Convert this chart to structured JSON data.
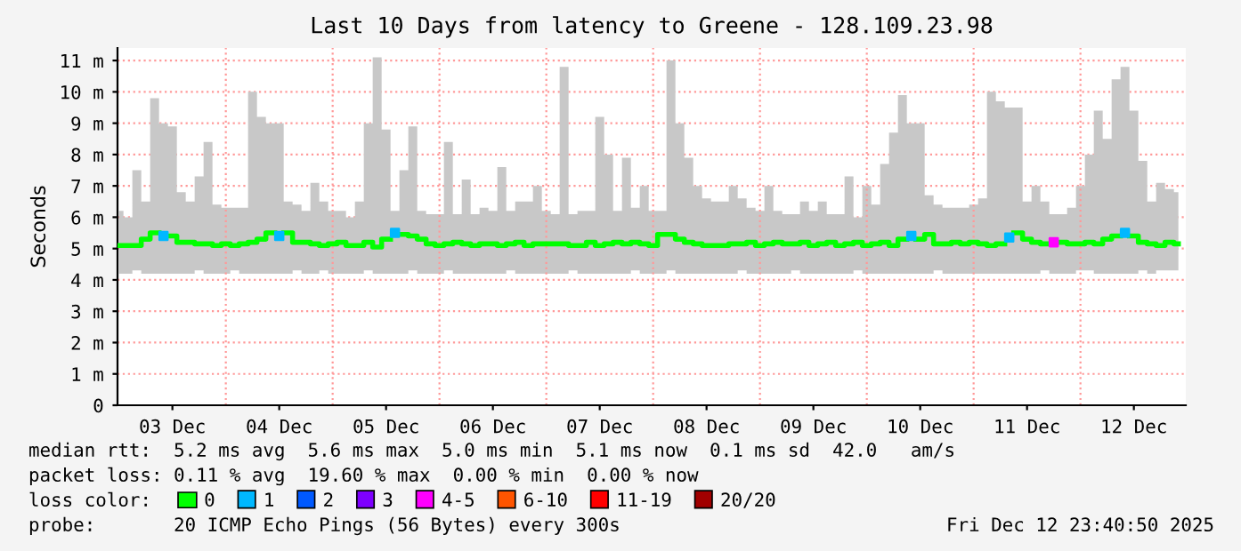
{
  "chart_data": {
    "type": "line",
    "title": "Last 10 Days from latency to Greene - 128.109.23.98",
    "ylabel": "Seconds",
    "legend_title": "loss color:",
    "legend": "bottom",
    "grid": "y",
    "xlim": [
      "2025-12-02T23:40",
      "2025-12-12T23:40"
    ],
    "xticks": [
      {
        "value": "2025-12-03T12:00",
        "label": "03 Dec"
      },
      {
        "value": "2025-12-04T12:00",
        "label": "04 Dec"
      },
      {
        "value": "2025-12-05T12:00",
        "label": "05 Dec"
      },
      {
        "value": "2025-12-06T12:00",
        "label": "06 Dec"
      },
      {
        "value": "2025-12-07T12:00",
        "label": "07 Dec"
      },
      {
        "value": "2025-12-08T12:00",
        "label": "08 Dec"
      },
      {
        "value": "2025-12-09T12:00",
        "label": "09 Dec"
      },
      {
        "value": "2025-12-10T12:00",
        "label": "10 Dec"
      },
      {
        "value": "2025-12-11T12:00",
        "label": "11 Dec"
      },
      {
        "value": "2025-12-12T12:00",
        "label": "12 Dec"
      }
    ],
    "ylim": [
      0,
      11.4
    ],
    "yticks": [
      0,
      {
        "value": 1,
        "label": "1 m"
      },
      {
        "value": 2,
        "label": "2 m"
      },
      {
        "value": 3,
        "label": "3 m"
      },
      {
        "value": 4,
        "label": "4 m"
      },
      {
        "value": 5,
        "label": "5 m"
      },
      {
        "value": 6,
        "label": "6 m"
      },
      {
        "value": 7,
        "label": "7 m"
      },
      {
        "value": 8,
        "label": "8 m"
      },
      {
        "value": 9,
        "label": "9 m"
      },
      {
        "value": 10,
        "label": "10 m"
      },
      {
        "value": 11,
        "label": "11 m"
      }
    ],
    "ref_lines": [
      {
        "axis": "x",
        "value": "2025-12-04T00:00",
        "color": "#ff9999",
        "line_style": "dotted"
      },
      {
        "axis": "x",
        "value": "2025-12-05T00:00",
        "color": "#ff9999",
        "line_style": "dotted"
      },
      {
        "axis": "x",
        "value": "2025-12-06T00:00",
        "color": "#ff9999",
        "line_style": "dotted"
      },
      {
        "axis": "x",
        "value": "2025-12-07T00:00",
        "color": "#ff9999",
        "line_style": "dotted"
      },
      {
        "axis": "x",
        "value": "2025-12-08T00:00",
        "color": "#ff9999",
        "line_style": "dotted"
      },
      {
        "axis": "x",
        "value": "2025-12-09T00:00",
        "color": "#ff9999",
        "line_style": "dotted"
      },
      {
        "axis": "x",
        "value": "2025-12-10T00:00",
        "color": "#ff9999",
        "line_style": "dotted"
      },
      {
        "axis": "x",
        "value": "2025-12-11T00:00",
        "color": "#ff9999",
        "line_style": "dotted"
      },
      {
        "axis": "x",
        "value": "2025-12-12T00:00",
        "color": "#ff9999",
        "line_style": "dotted"
      }
    ],
    "x": [
      "2025-12-03T00:00",
      "2025-12-03T02:00",
      "2025-12-03T04:00",
      "2025-12-03T06:00",
      "2025-12-03T08:00",
      "2025-12-03T10:00",
      "2025-12-03T12:00",
      "2025-12-03T14:00",
      "2025-12-03T16:00",
      "2025-12-03T18:00",
      "2025-12-03T20:00",
      "2025-12-03T22:00",
      "2025-12-04T00:00",
      "2025-12-04T02:00",
      "2025-12-04T04:00",
      "2025-12-04T06:00",
      "2025-12-04T08:00",
      "2025-12-04T10:00",
      "2025-12-04T12:00",
      "2025-12-04T14:00",
      "2025-12-04T16:00",
      "2025-12-04T18:00",
      "2025-12-04T20:00",
      "2025-12-04T22:00",
      "2025-12-05T00:00",
      "2025-12-05T02:00",
      "2025-12-05T04:00",
      "2025-12-05T06:00",
      "2025-12-05T08:00",
      "2025-12-05T10:00",
      "2025-12-05T12:00",
      "2025-12-05T14:00",
      "2025-12-05T16:00",
      "2025-12-05T18:00",
      "2025-12-05T20:00",
      "2025-12-05T22:00",
      "2025-12-06T00:00",
      "2025-12-06T02:00",
      "2025-12-06T04:00",
      "2025-12-06T06:00",
      "2025-12-06T08:00",
      "2025-12-06T10:00",
      "2025-12-06T12:00",
      "2025-12-06T14:00",
      "2025-12-06T16:00",
      "2025-12-06T18:00",
      "2025-12-06T20:00",
      "2025-12-06T22:00",
      "2025-12-07T00:00",
      "2025-12-07T02:00",
      "2025-12-07T04:00",
      "2025-12-07T06:00",
      "2025-12-07T08:00",
      "2025-12-07T10:00",
      "2025-12-07T12:00",
      "2025-12-07T14:00",
      "2025-12-07T16:00",
      "2025-12-07T18:00",
      "2025-12-07T20:00",
      "2025-12-07T22:00",
      "2025-12-08T00:00",
      "2025-12-08T02:00",
      "2025-12-08T04:00",
      "2025-12-08T06:00",
      "2025-12-08T08:00",
      "2025-12-08T10:00",
      "2025-12-08T12:00",
      "2025-12-08T14:00",
      "2025-12-08T16:00",
      "2025-12-08T18:00",
      "2025-12-08T20:00",
      "2025-12-08T22:00",
      "2025-12-09T00:00",
      "2025-12-09T02:00",
      "2025-12-09T04:00",
      "2025-12-09T06:00",
      "2025-12-09T08:00",
      "2025-12-09T10:00",
      "2025-12-09T12:00",
      "2025-12-09T14:00",
      "2025-12-09T16:00",
      "2025-12-09T18:00",
      "2025-12-09T20:00",
      "2025-12-09T22:00",
      "2025-12-10T00:00",
      "2025-12-10T02:00",
      "2025-12-10T04:00",
      "2025-12-10T06:00",
      "2025-12-10T08:00",
      "2025-12-10T10:00",
      "2025-12-10T12:00",
      "2025-12-10T14:00",
      "2025-12-10T16:00",
      "2025-12-10T18:00",
      "2025-12-10T20:00",
      "2025-12-10T22:00",
      "2025-12-11T00:00",
      "2025-12-11T02:00",
      "2025-12-11T04:00",
      "2025-12-11T06:00",
      "2025-12-11T08:00",
      "2025-12-11T10:00",
      "2025-12-11T12:00",
      "2025-12-11T14:00",
      "2025-12-11T16:00",
      "2025-12-11T18:00",
      "2025-12-11T20:00",
      "2025-12-11T22:00",
      "2025-12-12T00:00",
      "2025-12-12T02:00",
      "2025-12-12T04:00",
      "2025-12-12T06:00",
      "2025-12-12T08:00",
      "2025-12-12T10:00",
      "2025-12-12T12:00",
      "2025-12-12T14:00",
      "2025-12-12T16:00",
      "2025-12-12T18:00",
      "2025-12-12T20:00",
      "2025-12-12T22:00"
    ],
    "series": [
      {
        "name": "0",
        "color": "#00ff00",
        "values": [
          5.1,
          5.1,
          5.1,
          5.3,
          5.5,
          null,
          5.4,
          5.2,
          5.2,
          5.15,
          5.15,
          5.1,
          5.15,
          5.1,
          5.15,
          5.2,
          5.3,
          5.5,
          null,
          5.5,
          5.2,
          5.2,
          5.15,
          5.1,
          5.15,
          5.2,
          5.1,
          5.1,
          5.2,
          5.05,
          5.3,
          null,
          5.45,
          5.4,
          5.3,
          5.15,
          5.1,
          5.15,
          5.2,
          5.15,
          5.1,
          5.15,
          5.15,
          5.1,
          5.15,
          5.2,
          5.1,
          5.15,
          5.15,
          5.15,
          5.15,
          5.1,
          5.1,
          5.2,
          5.1,
          5.15,
          5.2,
          5.15,
          5.2,
          5.15,
          5.1,
          5.45,
          5.45,
          5.3,
          5.2,
          5.15,
          5.1,
          5.1,
          5.1,
          5.15,
          5.15,
          5.2,
          5.1,
          5.15,
          5.2,
          5.15,
          5.15,
          5.2,
          5.1,
          5.15,
          5.2,
          5.1,
          5.15,
          5.2,
          5.1,
          5.15,
          5.2,
          5.1,
          5.3,
          null,
          5.3,
          5.45,
          5.15,
          5.15,
          5.2,
          5.15,
          5.2,
          5.15,
          5.1,
          5.15,
          null,
          5.5,
          5.3,
          5.2,
          5.15,
          null,
          5.2,
          5.15,
          5.15,
          5.2,
          5.15,
          5.3,
          5.4,
          null,
          5.4,
          5.2,
          5.15,
          5.1,
          5.2,
          5.15
        ],
        "lower": [
          4.2,
          4.2,
          4.3,
          4.2,
          4.2,
          4.2,
          4.2,
          4.2,
          4.2,
          4.3,
          4.2,
          4.2,
          4.2,
          4.3,
          4.2,
          4.2,
          4.2,
          4.2,
          4.2,
          4.2,
          4.3,
          4.2,
          4.2,
          4.3,
          4.2,
          4.2,
          4.2,
          4.2,
          4.3,
          4.2,
          4.2,
          4.2,
          4.2,
          4.3,
          4.2,
          4.2,
          4.2,
          4.3,
          4.2,
          4.2,
          4.2,
          4.2,
          4.2,
          4.2,
          4.3,
          4.2,
          4.2,
          4.2,
          4.2,
          4.2,
          4.2,
          4.3,
          4.2,
          4.2,
          4.2,
          4.2,
          4.2,
          4.2,
          4.3,
          4.2,
          4.2,
          4.2,
          4.3,
          4.2,
          4.2,
          4.2,
          4.2,
          4.2,
          4.2,
          4.2,
          4.3,
          4.2,
          4.2,
          4.2,
          4.2,
          4.2,
          4.3,
          4.2,
          4.2,
          4.2,
          4.2,
          4.2,
          4.2,
          4.3,
          4.2,
          4.2,
          4.2,
          4.2,
          4.2,
          4.2,
          4.2,
          4.2,
          4.3,
          4.2,
          4.2,
          4.2,
          4.2,
          4.2,
          4.2,
          4.2,
          4.2,
          4.2,
          4.2,
          4.2,
          4.3,
          4.2,
          4.2,
          4.2,
          4.3,
          4.3,
          4.2,
          4.2,
          4.2,
          4.2,
          4.2,
          4.3,
          4.2,
          4.3,
          4.3,
          4.3
        ],
        "upper": [
          6.2,
          6.0,
          7.5,
          6.5,
          9.8,
          9.0,
          8.9,
          6.8,
          6.5,
          7.3,
          8.4,
          6.4,
          6.3,
          6.3,
          6.3,
          10.0,
          9.2,
          9.0,
          9.0,
          6.5,
          6.4,
          6.2,
          7.1,
          6.5,
          6.2,
          6.2,
          6.0,
          6.5,
          9.0,
          11.1,
          8.8,
          6.2,
          7.5,
          8.9,
          6.2,
          6.1,
          6.1,
          8.4,
          6.1,
          7.2,
          6.1,
          6.3,
          6.2,
          7.6,
          6.2,
          6.5,
          6.5,
          7.0,
          6.2,
          6.1,
          10.8,
          6.1,
          6.2,
          6.2,
          9.2,
          8.0,
          6.2,
          7.9,
          6.3,
          7.0,
          6.2,
          6.2,
          11.0,
          9.0,
          7.9,
          7.0,
          6.6,
          6.5,
          6.5,
          7.0,
          6.6,
          6.3,
          6.2,
          7.0,
          6.2,
          6.1,
          6.1,
          6.5,
          6.2,
          6.5,
          6.1,
          6.1,
          7.3,
          6.0,
          7.0,
          6.4,
          7.7,
          8.7,
          9.9,
          9.0,
          9.0,
          6.7,
          6.4,
          6.3,
          6.3,
          6.3,
          6.4,
          6.6,
          10.0,
          9.7,
          9.5,
          9.5,
          6.5,
          7.0,
          6.5,
          6.1,
          6.1,
          6.3,
          7.0,
          8.0,
          9.4,
          8.5,
          10.4,
          10.8,
          9.4,
          7.8,
          6.5,
          7.1,
          6.9,
          6.8
        ]
      },
      {
        "name": "1",
        "type": "scatter",
        "marker": "square",
        "color": "#00b8ff",
        "x": [
          "2025-12-03T10:00",
          "2025-12-04T12:00",
          "2025-12-05T14:00",
          "2025-12-10T10:00",
          "2025-12-11T08:00",
          "2025-12-12T10:00"
        ],
        "values": [
          5.4,
          5.4,
          5.5,
          5.4,
          5.35,
          5.5
        ]
      },
      {
        "name": "2",
        "type": "scatter",
        "marker": "square",
        "color": "#0059ff",
        "values": [
          null,
          null,
          null,
          null,
          null,
          null,
          null,
          null,
          null,
          null,
          null,
          null,
          null,
          null,
          null,
          null,
          null,
          null,
          null,
          null,
          null,
          null,
          null,
          null,
          null,
          null,
          null,
          null,
          null,
          null,
          null,
          null,
          null,
          null,
          null,
          null,
          null,
          null,
          null,
          null,
          null,
          null,
          null,
          null,
          null,
          null,
          null,
          null,
          null,
          null,
          null,
          null,
          null,
          null,
          null,
          null,
          null,
          null,
          null,
          null,
          null,
          null,
          null,
          null,
          null,
          null,
          null,
          null,
          null,
          null,
          null,
          null,
          null,
          null,
          null,
          null,
          null,
          null,
          null,
          null,
          null,
          null,
          null,
          null,
          null,
          null,
          null,
          null,
          null,
          null,
          null,
          null,
          null,
          null,
          null,
          null,
          null,
          null,
          null,
          null,
          null,
          null,
          null,
          null,
          null,
          null,
          null,
          null,
          null,
          null,
          null,
          null,
          null,
          null,
          null,
          null,
          null,
          null,
          null,
          null
        ]
      },
      {
        "name": "3",
        "type": "scatter",
        "marker": "square",
        "color": "#7e00ff",
        "values": [
          null,
          null,
          null,
          null,
          null,
          null,
          null,
          null,
          null,
          null,
          null,
          null,
          null,
          null,
          null,
          null,
          null,
          null,
          null,
          null,
          null,
          null,
          null,
          null,
          null,
          null,
          null,
          null,
          null,
          null,
          null,
          null,
          null,
          null,
          null,
          null,
          null,
          null,
          null,
          null,
          null,
          null,
          null,
          null,
          null,
          null,
          null,
          null,
          null,
          null,
          null,
          null,
          null,
          null,
          null,
          null,
          null,
          null,
          null,
          null,
          null,
          null,
          null,
          null,
          null,
          null,
          null,
          null,
          null,
          null,
          null,
          null,
          null,
          null,
          null,
          null,
          null,
          null,
          null,
          null,
          null,
          null,
          null,
          null,
          null,
          null,
          null,
          null,
          null,
          null,
          null,
          null,
          null,
          null,
          null,
          null,
          null,
          null,
          null,
          null,
          null,
          null,
          null,
          null,
          null,
          null,
          null,
          null,
          null,
          null,
          null,
          null,
          null,
          null,
          null,
          null,
          null,
          null,
          null,
          null
        ]
      },
      {
        "name": "4-5",
        "type": "scatter",
        "marker": "square",
        "color": "#ff00ff",
        "x": [
          "2025-12-11T18:00"
        ],
        "values": [
          5.2
        ]
      },
      {
        "name": "6-10",
        "type": "scatter",
        "marker": "square",
        "color": "#ff5500",
        "values": [
          null,
          null,
          null,
          null,
          null,
          null,
          null,
          null,
          null,
          null,
          null,
          null,
          null,
          null,
          null,
          null,
          null,
          null,
          null,
          null,
          null,
          null,
          null,
          null,
          null,
          null,
          null,
          null,
          null,
          null,
          null,
          null,
          null,
          null,
          null,
          null,
          null,
          null,
          null,
          null,
          null,
          null,
          null,
          null,
          null,
          null,
          null,
          null,
          null,
          null,
          null,
          null,
          null,
          null,
          null,
          null,
          null,
          null,
          null,
          null,
          null,
          null,
          null,
          null,
          null,
          null,
          null,
          null,
          null,
          null,
          null,
          null,
          null,
          null,
          null,
          null,
          null,
          null,
          null,
          null,
          null,
          null,
          null,
          null,
          null,
          null,
          null,
          null,
          null,
          null,
          null,
          null,
          null,
          null,
          null,
          null,
          null,
          null,
          null,
          null,
          null,
          null,
          null,
          null,
          null,
          null,
          null,
          null,
          null,
          null,
          null,
          null,
          null,
          null,
          null,
          null,
          null,
          null,
          null,
          null
        ]
      },
      {
        "name": "11-19",
        "type": "scatter",
        "marker": "square",
        "color": "#ff0000",
        "values": [
          null,
          null,
          null,
          null,
          null,
          null,
          null,
          null,
          null,
          null,
          null,
          null,
          null,
          null,
          null,
          null,
          null,
          null,
          null,
          null,
          null,
          null,
          null,
          null,
          null,
          null,
          null,
          null,
          null,
          null,
          null,
          null,
          null,
          null,
          null,
          null,
          null,
          null,
          null,
          null,
          null,
          null,
          null,
          null,
          null,
          null,
          null,
          null,
          null,
          null,
          null,
          null,
          null,
          null,
          null,
          null,
          null,
          null,
          null,
          null,
          null,
          null,
          null,
          null,
          null,
          null,
          null,
          null,
          null,
          null,
          null,
          null,
          null,
          null,
          null,
          null,
          null,
          null,
          null,
          null,
          null,
          null,
          null,
          null,
          null,
          null,
          null,
          null,
          null,
          null,
          null,
          null,
          null,
          null,
          null,
          null,
          null,
          null,
          null,
          null,
          null,
          null,
          null,
          null,
          null,
          null,
          null,
          null,
          null,
          null,
          null,
          null,
          null,
          null,
          null,
          null,
          null,
          null,
          null,
          null
        ]
      },
      {
        "name": "20/20",
        "type": "scatter",
        "marker": "square",
        "color": "#a10000",
        "values": [
          null,
          null,
          null,
          null,
          null,
          null,
          null,
          null,
          null,
          null,
          null,
          null,
          null,
          null,
          null,
          null,
          null,
          null,
          null,
          null,
          null,
          null,
          null,
          null,
          null,
          null,
          null,
          null,
          null,
          null,
          null,
          null,
          null,
          null,
          null,
          null,
          null,
          null,
          null,
          null,
          null,
          null,
          null,
          null,
          null,
          null,
          null,
          null,
          null,
          null,
          null,
          null,
          null,
          null,
          null,
          null,
          null,
          null,
          null,
          null,
          null,
          null,
          null,
          null,
          null,
          null,
          null,
          null,
          null,
          null,
          null,
          null,
          null,
          null,
          null,
          null,
          null,
          null,
          null,
          null,
          null,
          null,
          null,
          null,
          null,
          null,
          null,
          null,
          null,
          null,
          null,
          null,
          null,
          null,
          null,
          null,
          null,
          null,
          null,
          null,
          null,
          null,
          null,
          null,
          null,
          null,
          null,
          null,
          null,
          null,
          null,
          null,
          null,
          null,
          null,
          null,
          null,
          null,
          null,
          null
        ]
      }
    ],
    "annotations": [
      "median rtt:  5.2 ms avg  5.6 ms max  5.0 ms min  5.1 ms now  0.1 ms sd  42.0   am/s",
      "packet loss: 0.11 % avg  19.60 % max  0.00 % min  0.00 % now",
      "probe:       20 ICMP Echo Pings (56 Bytes) every 300s",
      "Fri Dec 12 23:40:50 2025"
    ]
  }
}
